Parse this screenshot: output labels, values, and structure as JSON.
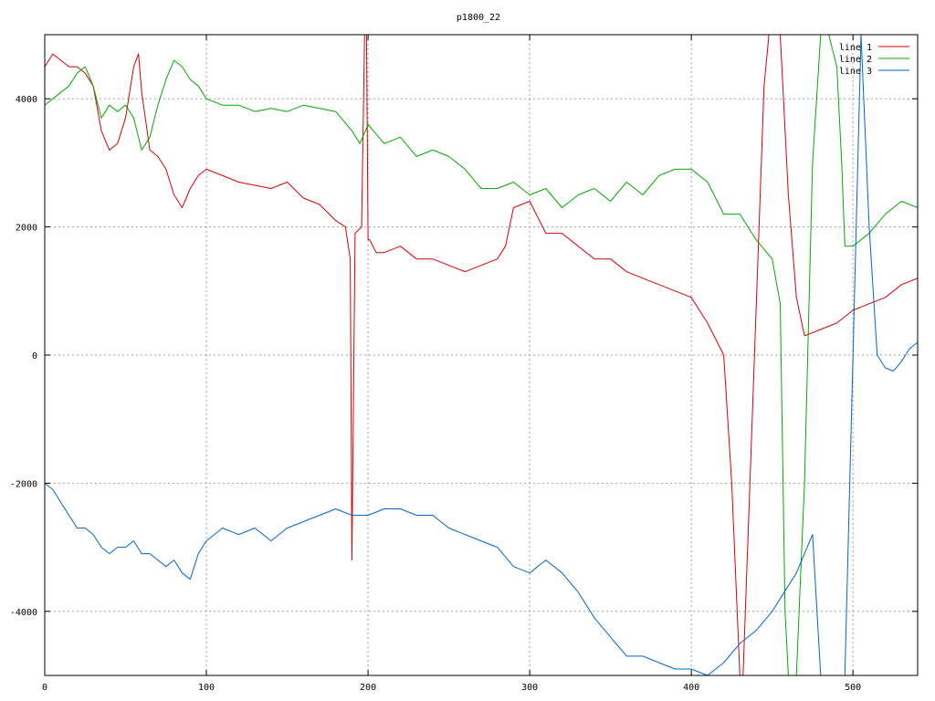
{
  "chart_data": {
    "type": "line",
    "title": "p1800_22",
    "xlabel": "",
    "ylabel": "",
    "xlim": [
      0,
      540
    ],
    "ylim": [
      -5000,
      5000
    ],
    "xticks": [
      0,
      100,
      200,
      300,
      400,
      500
    ],
    "yticks": [
      -4000,
      -2000,
      0,
      2000,
      4000
    ],
    "grid": true,
    "legend_position": "top-right",
    "series": [
      {
        "name": "line 1",
        "color": "#dd0000",
        "x": [
          0,
          5,
          10,
          15,
          20,
          25,
          30,
          35,
          40,
          45,
          50,
          55,
          58,
          60,
          65,
          70,
          75,
          80,
          85,
          90,
          95,
          100,
          110,
          120,
          130,
          140,
          150,
          160,
          170,
          180,
          186,
          189,
          190,
          192,
          196,
          198,
          199,
          200,
          201,
          205,
          210,
          220,
          230,
          240,
          250,
          260,
          270,
          280,
          285,
          290,
          300,
          310,
          320,
          330,
          340,
          350,
          360,
          370,
          380,
          390,
          400,
          410,
          420,
          425,
          430,
          432,
          445,
          448,
          455,
          460,
          465,
          470,
          480,
          490,
          500,
          510,
          520,
          530,
          540
        ],
        "y": [
          4500,
          4700,
          4600,
          4500,
          4500,
          4400,
          4200,
          3500,
          3200,
          3300,
          3700,
          4500,
          4700,
          4100,
          3200,
          3100,
          2900,
          2500,
          2300,
          2600,
          2800,
          2900,
          2800,
          2700,
          2650,
          2600,
          2700,
          2450,
          2350,
          2100,
          2000,
          1500,
          -3200,
          1900,
          2000,
          5200,
          5200,
          1800,
          1800,
          1600,
          1600,
          1700,
          1500,
          1500,
          1400,
          1300,
          1400,
          1500,
          1700,
          2300,
          2400,
          1900,
          1900,
          1700,
          1500,
          1500,
          1300,
          1200,
          1100,
          1000,
          900,
          500,
          0,
          -2000,
          -5000,
          -5000,
          4200,
          5000,
          5000,
          2500,
          900,
          300,
          400,
          500,
          700,
          800,
          900,
          1100,
          1200
        ]
      },
      {
        "name": "line 2",
        "color": "#00aa00",
        "x": [
          0,
          5,
          10,
          15,
          20,
          25,
          30,
          35,
          40,
          45,
          50,
          55,
          60,
          65,
          70,
          75,
          80,
          85,
          90,
          95,
          100,
          110,
          120,
          130,
          140,
          150,
          160,
          170,
          180,
          190,
          195,
          200,
          210,
          220,
          230,
          240,
          250,
          260,
          270,
          280,
          290,
          300,
          310,
          320,
          330,
          340,
          350,
          360,
          370,
          380,
          390,
          400,
          410,
          420,
          430,
          440,
          450,
          455,
          458,
          460,
          465,
          470,
          475,
          480,
          485,
          490,
          493,
          495,
          500,
          510,
          520,
          530,
          540
        ],
        "y": [
          3900,
          4000,
          4100,
          4200,
          4400,
          4500,
          4200,
          3700,
          3900,
          3800,
          3900,
          3700,
          3200,
          3400,
          3900,
          4300,
          4600,
          4500,
          4300,
          4200,
          4000,
          3900,
          3900,
          3800,
          3850,
          3800,
          3900,
          3850,
          3800,
          3500,
          3300,
          3600,
          3300,
          3400,
          3100,
          3200,
          3100,
          2900,
          2600,
          2600,
          2700,
          2500,
          2600,
          2300,
          2500,
          2600,
          2400,
          2700,
          2500,
          2800,
          2900,
          2900,
          2700,
          2200,
          2200,
          1800,
          1500,
          800,
          -4000,
          -5000,
          -5000,
          -2000,
          3000,
          5000,
          5000,
          4500,
          3000,
          1700,
          1700,
          1900,
          2200,
          2400,
          2300
        ]
      },
      {
        "name": "line 3",
        "color": "#0066cc",
        "x": [
          0,
          5,
          10,
          15,
          20,
          25,
          30,
          35,
          40,
          45,
          50,
          55,
          60,
          65,
          70,
          75,
          80,
          85,
          90,
          95,
          100,
          110,
          120,
          130,
          140,
          150,
          160,
          170,
          180,
          190,
          200,
          210,
          220,
          230,
          240,
          250,
          260,
          270,
          280,
          290,
          300,
          310,
          320,
          330,
          340,
          350,
          360,
          370,
          380,
          390,
          400,
          410,
          420,
          430,
          440,
          450,
          460,
          465,
          470,
          475,
          480,
          485,
          490,
          495,
          500,
          502,
          505,
          510,
          515,
          520,
          525,
          530,
          535,
          540
        ],
        "y": [
          -2000,
          -2100,
          -2300,
          -2500,
          -2700,
          -2700,
          -2800,
          -3000,
          -3100,
          -3000,
          -3000,
          -2900,
          -3100,
          -3100,
          -3200,
          -3300,
          -3200,
          -3400,
          -3500,
          -3100,
          -2900,
          -2700,
          -2800,
          -2700,
          -2900,
          -2700,
          -2600,
          -2500,
          -2400,
          -2500,
          -2500,
          -2400,
          -2400,
          -2500,
          -2500,
          -2700,
          -2800,
          -2900,
          -3000,
          -3300,
          -3400,
          -3200,
          -3400,
          -3700,
          -4100,
          -4400,
          -4700,
          -4700,
          -4800,
          -4900,
          -4900,
          -5000,
          -4800,
          -4500,
          -4300,
          -4000,
          -3600,
          -3400,
          -3100,
          -2800,
          -5000,
          -5000,
          -5000,
          -5000,
          0,
          2000,
          5000,
          2000,
          0,
          -200,
          -250,
          -100,
          100,
          200
        ]
      }
    ]
  }
}
